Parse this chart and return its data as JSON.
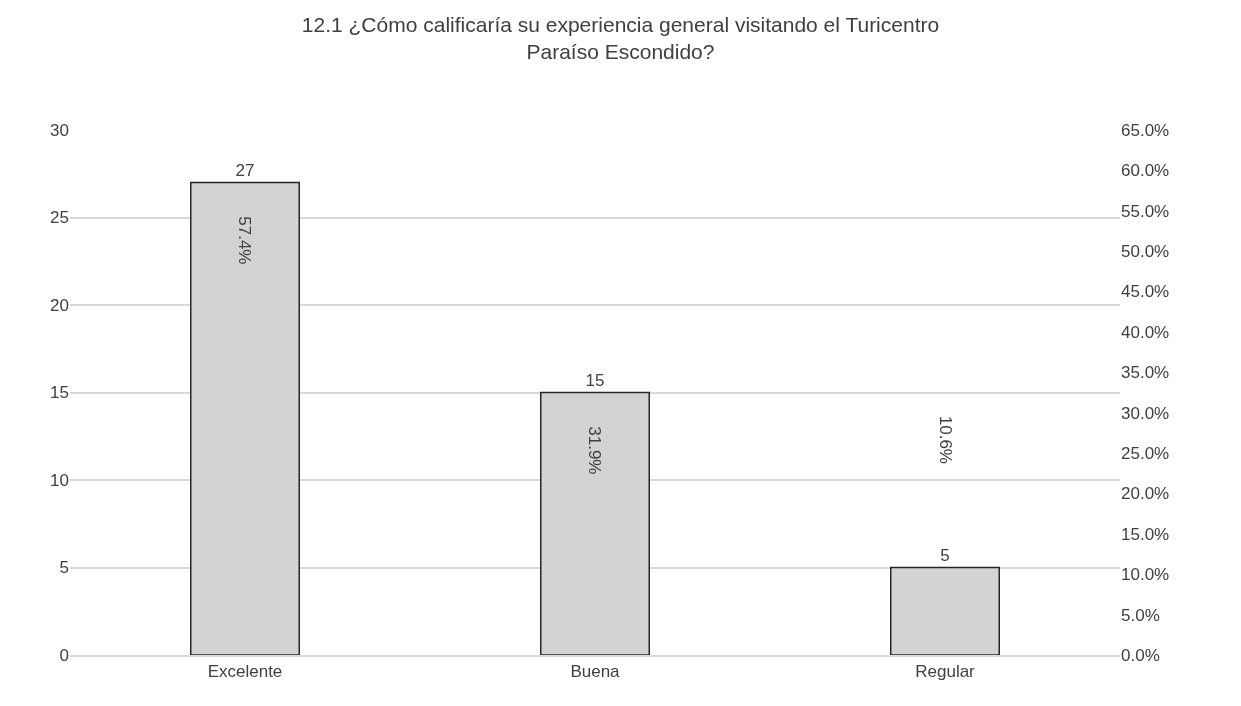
{
  "chart_data": {
    "type": "bar",
    "title": "12.1 ¿Cómo calificaría su experiencia general visitando el Turicentro\nParaíso Escondido?",
    "categories": [
      "Excelente",
      "Buena",
      "Regular"
    ],
    "series": [
      {
        "color": "#d3d3d3",
        "values": [
          27,
          15,
          5
        ]
      }
    ],
    "data_labels": true,
    "ylim": [
      0,
      30
    ],
    "yticks": [
      0,
      5,
      10,
      15,
      20,
      25,
      30
    ],
    "y2lim": [
      0,
      65
    ],
    "y2ticks": [
      {
        "value": 0,
        "label": "0.0%"
      },
      {
        "value": 5,
        "label": "5.0%"
      },
      {
        "value": 10,
        "label": "10.0%"
      },
      {
        "value": 15,
        "label": "15.0%"
      },
      {
        "value": 20,
        "label": "20.0%"
      },
      {
        "value": 25,
        "label": "25.0%"
      },
      {
        "value": 30,
        "label": "30.0%"
      },
      {
        "value": 35,
        "label": "35.0%"
      },
      {
        "value": 40,
        "label": "40.0%"
      },
      {
        "value": 45,
        "label": "45.0%"
      },
      {
        "value": 50,
        "label": "50.0%"
      },
      {
        "value": 55,
        "label": "55.0%"
      },
      {
        "value": 60,
        "label": "60.0%"
      },
      {
        "value": 65,
        "label": "65.0%"
      }
    ],
    "annotations": [
      "57.4%",
      "31.9%",
      "10.6%"
    ],
    "grid": "y",
    "legend": false
  }
}
